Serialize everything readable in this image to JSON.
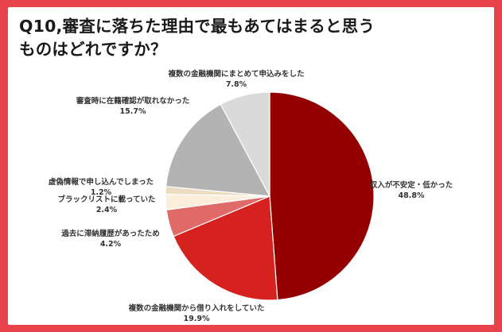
{
  "title": {
    "line1": "Q10,審査に落ちた理由で最もあてはまると思う",
    "line2": "ものはどれですか？"
  },
  "colors": {
    "background": "#e8434c",
    "card": "#ffffff"
  },
  "chart_data": {
    "type": "pie",
    "title": "Q10,審査に落ちた理由で最もあてはまると思うものはどれですか？",
    "slices": [
      {
        "label": "収入が不安定・低かった",
        "value": 48.8,
        "value_label": "48.8%",
        "color": "#940000"
      },
      {
        "label": "複数の金融機関から借り入れをしていた",
        "value": 19.9,
        "value_label": "19.9%",
        "color": "#d5221f"
      },
      {
        "label": "過去に滞納履歴があったため",
        "value": 4.2,
        "value_label": "4.2%",
        "color": "#e06a68"
      },
      {
        "label": "ブラックリストに載っていた",
        "value": 2.4,
        "value_label": "2.4%",
        "color": "#fbefdb"
      },
      {
        "label": "虚偽情報で申し込んでしまった",
        "value": 1.2,
        "value_label": "1.2%",
        "color": "#ecdcc0"
      },
      {
        "label": "審査時に在籍確認が取れなかった",
        "value": 15.7,
        "value_label": "15.7%",
        "color": "#b3b3b3"
      },
      {
        "label": "複数の金融機関にまとめて申込みをした",
        "value": 7.8,
        "value_label": "7.8%",
        "color": "#dadada"
      }
    ]
  }
}
